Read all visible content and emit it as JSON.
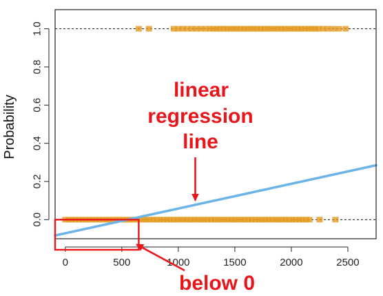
{
  "chart_data": {
    "type": "scatter",
    "title": "",
    "xlabel": "",
    "ylabel": "Probability",
    "xlim": [
      -90,
      2750
    ],
    "ylim": [
      -0.1,
      1.1
    ],
    "x_ticks": [
      0,
      500,
      1000,
      1500,
      2000,
      2500
    ],
    "x_tick_labels": [
      "0",
      "500",
      "1000",
      "1500",
      "2000",
      "2500"
    ],
    "y_ticks": [
      0.0,
      0.2,
      0.4,
      0.6,
      0.8,
      1.0
    ],
    "y_tick_labels": [
      "0.0",
      "0.2",
      "0.4",
      "0.6",
      "0.8",
      "1.0"
    ],
    "reference_lines": [
      0,
      1
    ],
    "series": [
      {
        "marker": "rug-tick",
        "color": "#e39a1e",
        "y": 0,
        "x": [
          0,
          30,
          60,
          90,
          120,
          150,
          180,
          210,
          240,
          270,
          300,
          330,
          360,
          390,
          420,
          450,
          480,
          510,
          540,
          570,
          600,
          630,
          660,
          690,
          720,
          750,
          780,
          810,
          840,
          870,
          900,
          930,
          960,
          990,
          1020,
          1050,
          1080,
          1110,
          1140,
          1170,
          1200,
          1230,
          1260,
          1290,
          1320,
          1350,
          1380,
          1410,
          1440,
          1470,
          1500,
          1530,
          1560,
          1590,
          1620,
          1650,
          1680,
          1710,
          1740,
          1770,
          1800,
          1830,
          1860,
          1890,
          1920,
          1950,
          1980,
          2010,
          2040,
          2070,
          2100,
          2130,
          2160,
          2250,
          2390
        ]
      },
      {
        "marker": "rug-tick",
        "color": "#e39a1e",
        "y": 1,
        "x": [
          650,
          740,
          960,
          1000,
          1040,
          1080,
          1120,
          1160,
          1200,
          1240,
          1280,
          1310,
          1340,
          1370,
          1400,
          1430,
          1460,
          1490,
          1520,
          1550,
          1580,
          1610,
          1640,
          1670,
          1700,
          1730,
          1760,
          1790,
          1820,
          1850,
          1880,
          1910,
          1940,
          1970,
          2000,
          2030,
          2060,
          2090,
          2120,
          2150,
          2180,
          2210,
          2240,
          2280,
          2320,
          2370,
          2420,
          2480
        ]
      }
    ],
    "regression_line": {
      "color": "#6cb3e6",
      "x": [
        -90,
        2750
      ],
      "y": [
        -0.083,
        0.285
      ]
    },
    "annotations": [
      {
        "lines": [
          "linear",
          "regression",
          "line"
        ],
        "color": "#e8161b",
        "points_to": {
          "x": 1150,
          "y": 0.1
        }
      },
      {
        "lines": [
          "below 0"
        ],
        "color": "#e8161b",
        "points_to": {
          "x": 630,
          "y": -0.13
        }
      }
    ],
    "highlight_box": {
      "x": [
        -90,
        650
      ],
      "y": [
        -0.1,
        0.0
      ],
      "color": "#e8161b"
    }
  }
}
